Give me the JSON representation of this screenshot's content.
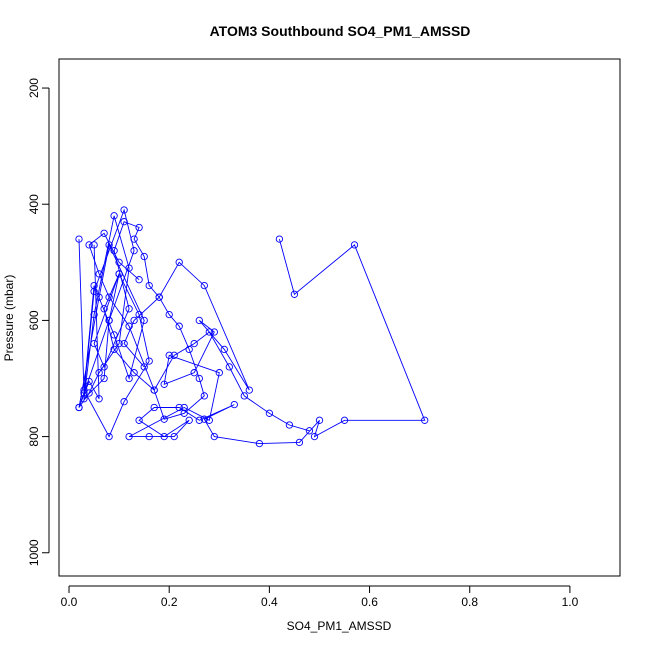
{
  "chart_data": {
    "type": "line",
    "title": "ATOM3 Southbound SO4_PM1_AMSSD",
    "xlabel": "SO4_PM1_AMSSD",
    "ylabel": "Pressure (mbar)",
    "xlim": [
      -0.02,
      1.1
    ],
    "ylim": [
      1040,
      150
    ],
    "y_reversed": true,
    "x_ticks": [
      0.0,
      0.2,
      0.4,
      0.6,
      0.8,
      1.0
    ],
    "x_tick_labels": [
      "0.0",
      "0.2",
      "0.4",
      "0.6",
      "0.8",
      "1.0"
    ],
    "y_ticks": [
      200,
      400,
      600,
      800,
      1000
    ],
    "y_tick_labels": [
      "200",
      "400",
      "600",
      "800",
      "1000"
    ],
    "grid": false,
    "series_color": "#0000ff",
    "series": [
      {
        "values_x": [
          0.02,
          0.03,
          0.05,
          0.11,
          0.13,
          0.08,
          0.07,
          0.03,
          0.05,
          0.09,
          0.12,
          0.1,
          0.06,
          0.04,
          0.02,
          0.06,
          0.08,
          0.15,
          0.12,
          0.09,
          0.05,
          0.03,
          0.08,
          0.11,
          0.16,
          0.14,
          0.1,
          0.07,
          0.09,
          0.13,
          0.17,
          0.12,
          0.08,
          0.06,
          0.04,
          0.07,
          0.1,
          0.14
        ],
        "values_y": [
          460,
          725,
          550,
          410,
          480,
          600,
          700,
          735,
          590,
          420,
          510,
          640,
          690,
          725,
          750,
          560,
          470,
          600,
          700,
          625,
          540,
          720,
          800,
          740,
          670,
          590,
          520,
          580,
          650,
          690,
          720,
          610,
          560,
          520,
          470,
          450,
          500,
          530
        ]
      },
      {
        "values_x": [
          0.42,
          0.45,
          0.57,
          0.71,
          0.55,
          0.49,
          0.5,
          0.46,
          0.38,
          0.29,
          0.27,
          0.33,
          0.26,
          0.22,
          0.17,
          0.14,
          0.19,
          0.24,
          0.21,
          0.16,
          0.12,
          0.23,
          0.28,
          0.3,
          0.2,
          0.19,
          0.25,
          0.29,
          0.26,
          0.31,
          0.36,
          0.27,
          0.22,
          0.18,
          0.13,
          0.11,
          0.15
        ],
        "values_y": [
          460,
          555,
          470,
          772,
          772,
          800,
          772,
          810,
          812,
          800,
          770,
          745,
          772,
          750,
          750,
          772,
          800,
          772,
          800,
          800,
          800,
          750,
          772,
          690,
          660,
          710,
          690,
          620,
          600,
          650,
          720,
          540,
          500,
          560,
          600,
          640,
          680
        ]
      },
      {
        "values_x": [
          0.05,
          0.06,
          0.04,
          0.02,
          0.08,
          0.1,
          0.05,
          0.07,
          0.12,
          0.09,
          0.11,
          0.14,
          0.13,
          0.15,
          0.16,
          0.18,
          0.2,
          0.22,
          0.24,
          0.26,
          0.27,
          0.23,
          0.19,
          0.17,
          0.21,
          0.25,
          0.28,
          0.32,
          0.35,
          0.4,
          0.44,
          0.48
        ],
        "values_y": [
          470,
          735,
          705,
          750,
          600,
          520,
          640,
          680,
          580,
          480,
          430,
          440,
          460,
          490,
          540,
          560,
          590,
          610,
          650,
          700,
          730,
          760,
          770,
          720,
          660,
          640,
          620,
          680,
          730,
          760,
          780,
          790
        ]
      }
    ]
  }
}
